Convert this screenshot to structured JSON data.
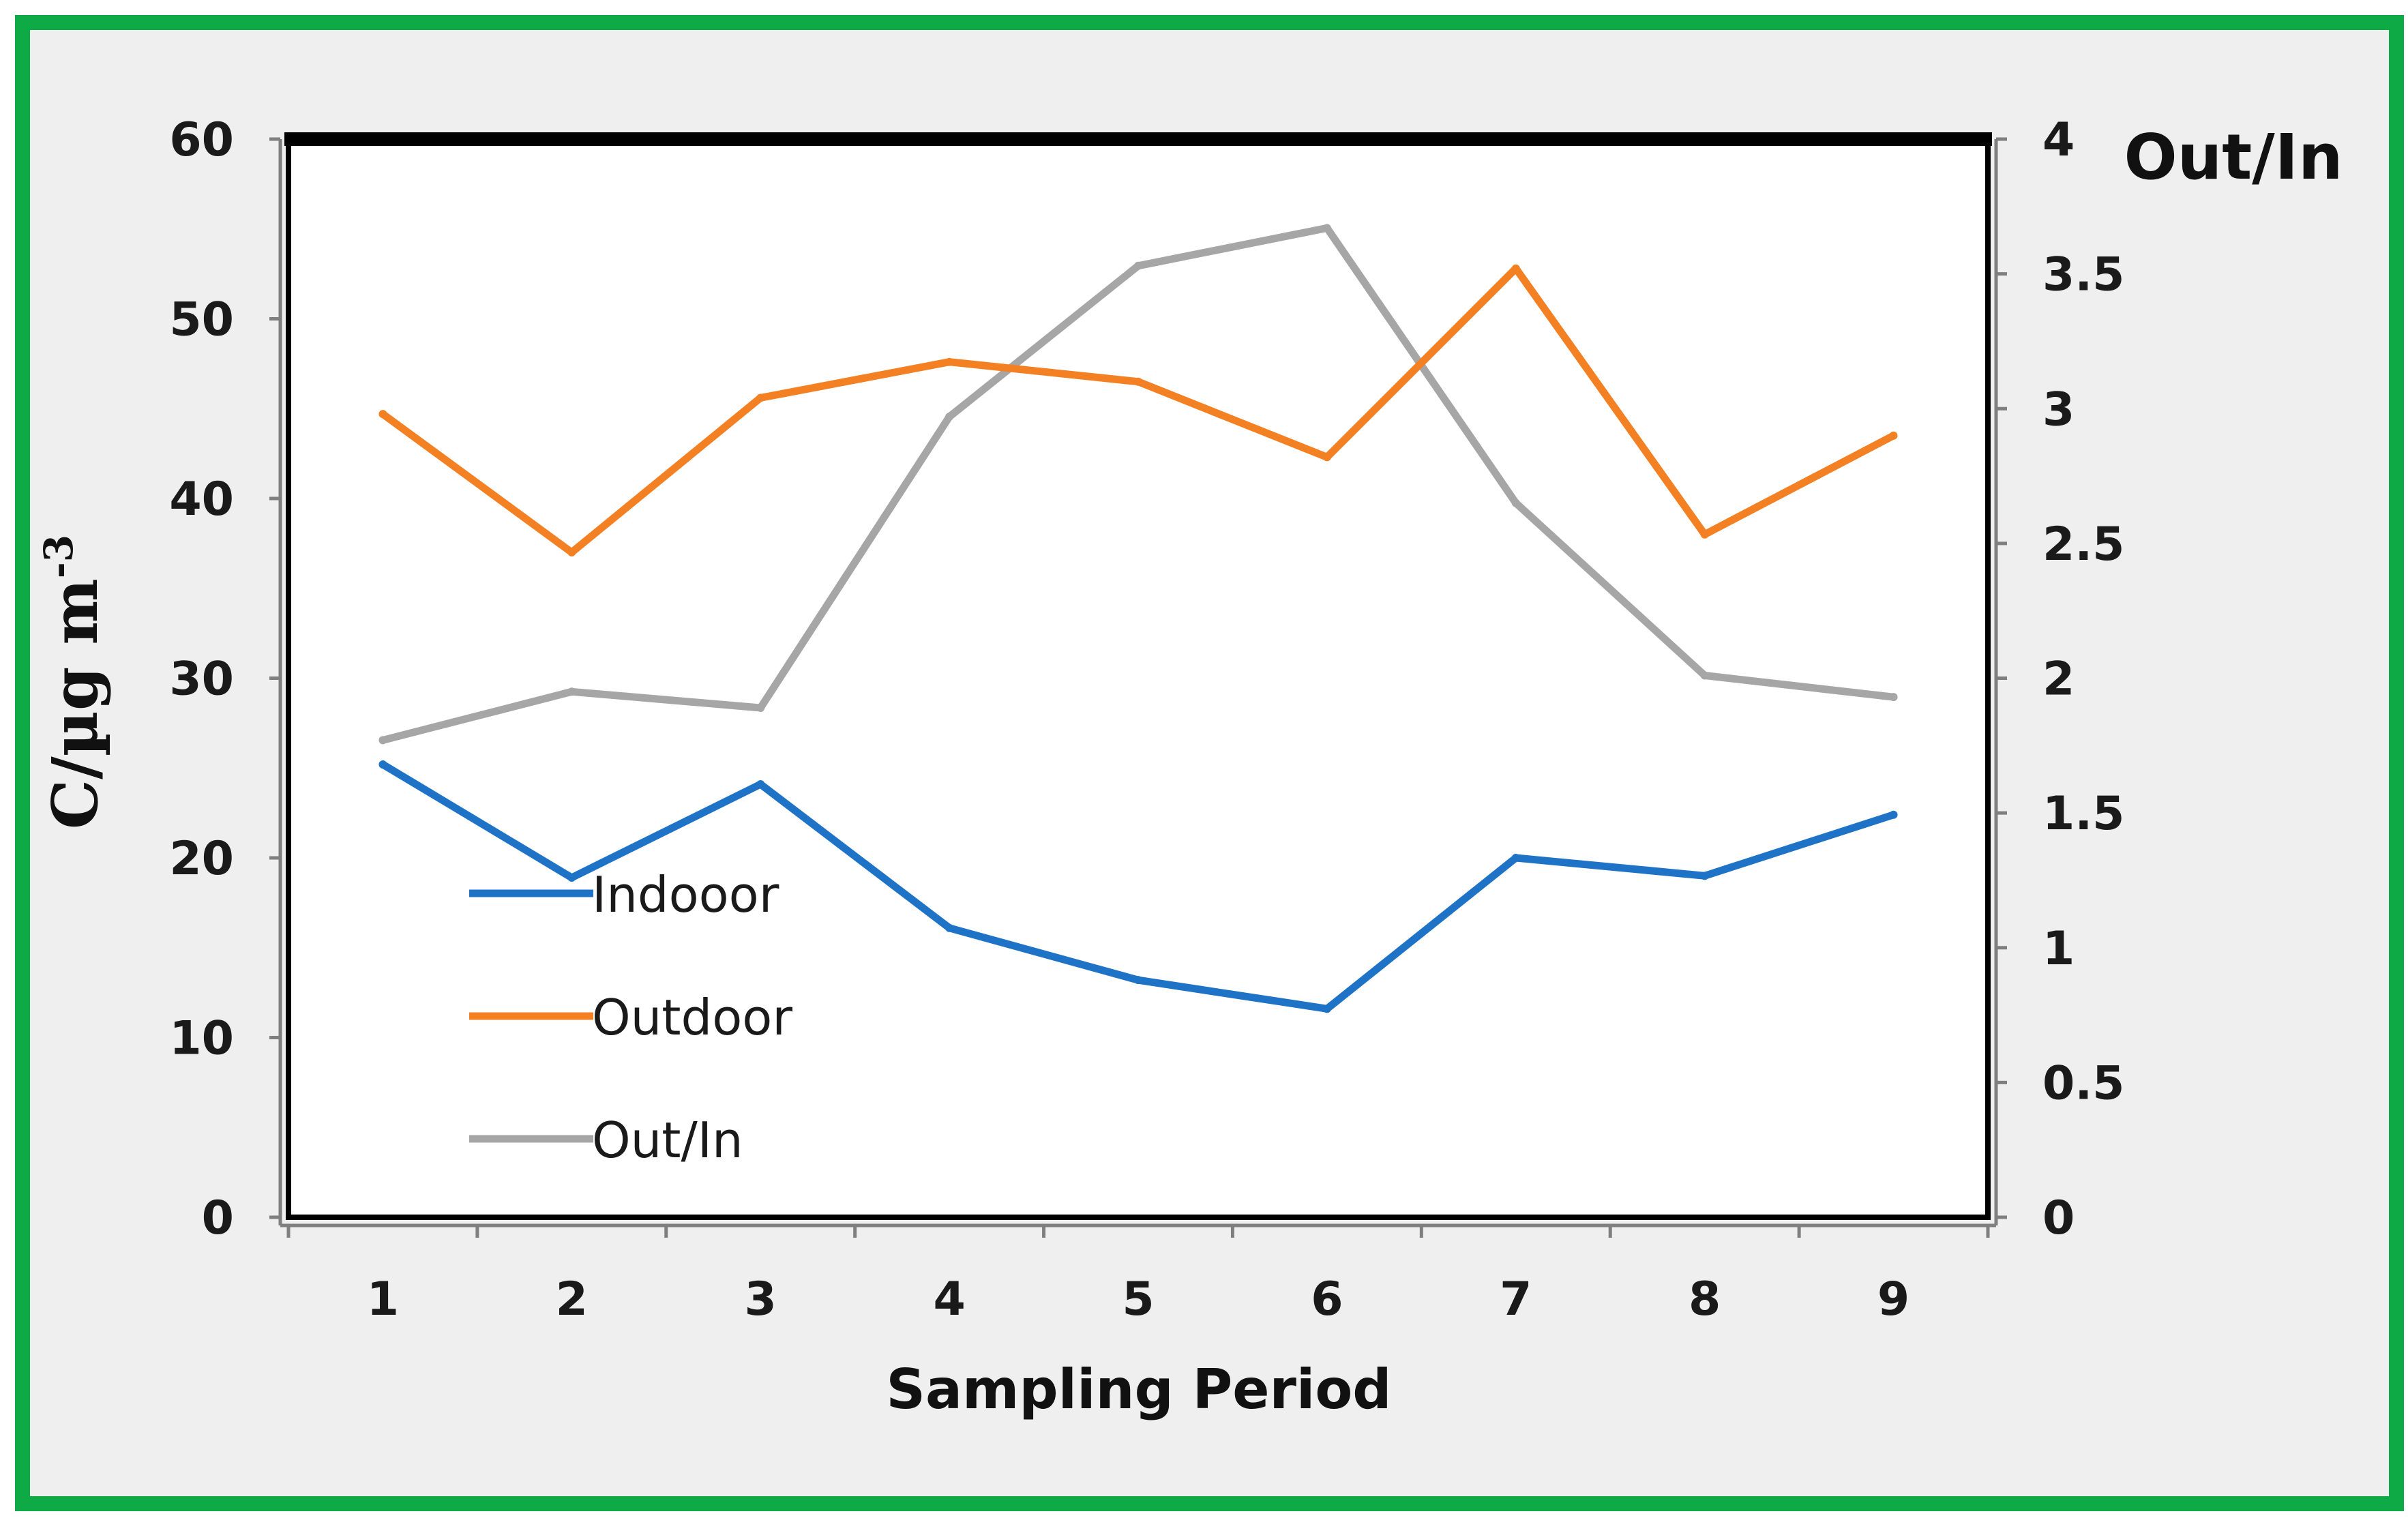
{
  "chart_data": {
    "type": "line",
    "categories": [
      "1",
      "2",
      "3",
      "4",
      "5",
      "6",
      "7",
      "8",
      "9"
    ],
    "series": [
      {
        "name": "Indooor",
        "axis": "left",
        "color": "#1f73c6",
        "values": [
          25.2,
          18.9,
          24.1,
          16.1,
          13.2,
          11.6,
          20.0,
          19.0,
          22.4
        ]
      },
      {
        "name": "Outdoor",
        "axis": "left",
        "color": "#f48024",
        "values": [
          44.7,
          37.0,
          45.6,
          47.6,
          46.5,
          42.3,
          52.8,
          38.0,
          43.5
        ]
      },
      {
        "name": "Out/In",
        "axis": "right",
        "color": "#a6a6a6",
        "values": [
          1.77,
          1.95,
          1.89,
          2.97,
          3.53,
          3.67,
          2.65,
          2.01,
          1.93
        ]
      }
    ],
    "xlabel": "Sampling Period",
    "ylabel": "C/µg m",
    "ylabel_sup": "-3",
    "y2label": "Out/In",
    "ylim": [
      0,
      60
    ],
    "yticks": [
      "0",
      "10",
      "20",
      "30",
      "40",
      "50",
      "60"
    ],
    "y2lim": [
      0,
      4
    ],
    "y2ticks": [
      "0",
      "0.5",
      "1",
      "1.5",
      "2",
      "2.5",
      "3",
      "3.5",
      "4"
    ],
    "legend_position": "lower-left"
  }
}
